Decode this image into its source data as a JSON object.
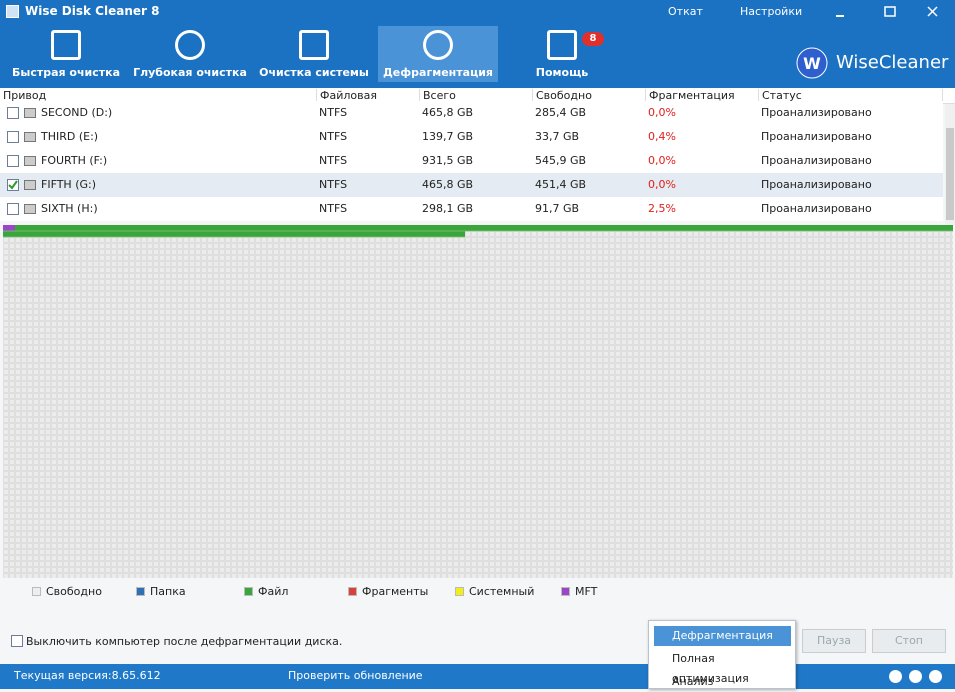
{
  "window": {
    "title": "Wise Disk Cleaner 8",
    "restore": "Откат",
    "settings": "Настройки"
  },
  "tabs": [
    {
      "label": "Быстрая очистка",
      "active": false
    },
    {
      "label": "Глубокая очистка",
      "active": false
    },
    {
      "label": "Очистка системы",
      "active": false
    },
    {
      "label": "Дефрагментация",
      "active": true
    },
    {
      "label": "Помощь",
      "active": false,
      "badge": "8"
    }
  ],
  "logo": "WiseCleaner",
  "table": {
    "columns": [
      "Привод",
      "Файловая система",
      "Всего",
      "Свободно",
      "Фрагментация",
      "Статус"
    ],
    "rows": [
      {
        "checked": false,
        "cells": [
          "SECOND (D:)",
          "NTFS",
          "465,8 GB",
          "285,4 GB",
          "0,0%",
          "Проанализировано"
        ]
      },
      {
        "checked": false,
        "cells": [
          "THIRD (E:)",
          "NTFS",
          "139,7 GB",
          "33,7 GB",
          "0,4%",
          "Проанализировано"
        ]
      },
      {
        "checked": false,
        "cells": [
          "FOURTH (F:)",
          "NTFS",
          "931,5 GB",
          "545,9 GB",
          "0,0%",
          "Проанализировано"
        ]
      },
      {
        "checked": true,
        "cells": [
          "FIFTH (G:)",
          "NTFS",
          "465,8 GB",
          "451,4 GB",
          "0,0%",
          "Проанализировано"
        ]
      },
      {
        "checked": false,
        "cells": [
          "SIXTH (H:)",
          "NTFS",
          "298,1 GB",
          "91,7 GB",
          "2,5%",
          "Проанализировано"
        ]
      }
    ]
  },
  "legend": [
    {
      "label": "Свободно",
      "color": "#eeeeee"
    },
    {
      "label": "Папка",
      "color": "#2f6fb6"
    },
    {
      "label": "Файл",
      "color": "#3aa53a"
    },
    {
      "label": "Фрагменты",
      "color": "#d9413a"
    },
    {
      "label": "Системный",
      "color": "#f2ee1c"
    },
    {
      "label": "MFT",
      "color": "#9b46c8"
    }
  ],
  "shutdown_option": "Выключить компьютер после дефрагментации диска.",
  "buttons": {
    "pause": "Пауза",
    "stop": "Стоп"
  },
  "menu": [
    "Дефрагментация",
    "Полная оптимизация",
    "Анализ"
  ],
  "status": {
    "version": "Текущая версия:8.65.612",
    "update": "Проверить обновление"
  }
}
